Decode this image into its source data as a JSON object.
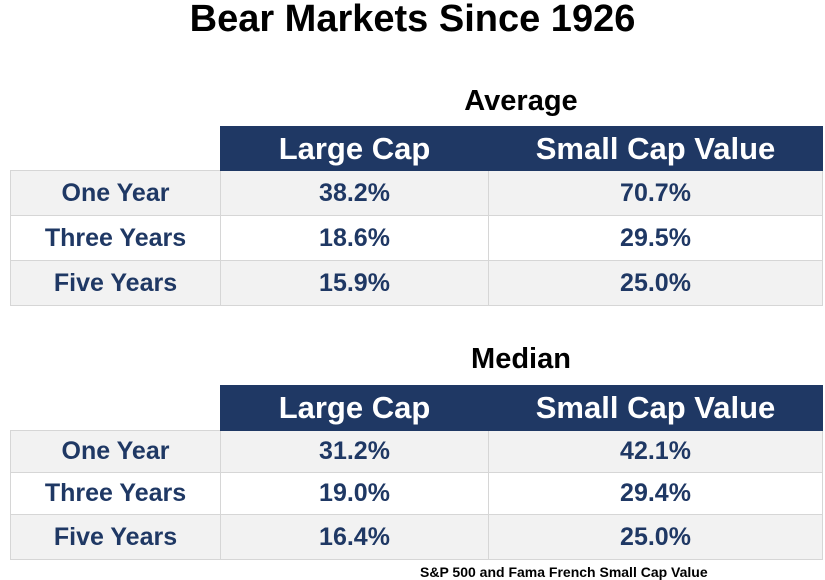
{
  "title": "Bear Markets Since 1926",
  "tables": [
    {
      "heading": "Average",
      "columns": [
        "Large Cap",
        "Small Cap Value"
      ],
      "rows": [
        {
          "label": "One Year",
          "values": [
            "38.2%",
            "70.7%"
          ]
        },
        {
          "label": "Three Years",
          "values": [
            "18.6%",
            "29.5%"
          ]
        },
        {
          "label": "Five Years",
          "values": [
            "15.9%",
            "25.0%"
          ]
        }
      ]
    },
    {
      "heading": "Median",
      "columns": [
        "Large Cap",
        "Small Cap Value"
      ],
      "rows": [
        {
          "label": "One Year",
          "values": [
            "31.2%",
            "42.1%"
          ]
        },
        {
          "label": "Three Years",
          "values": [
            "19.0%",
            "29.4%"
          ]
        },
        {
          "label": "Five Years",
          "values": [
            "16.4%",
            "25.0%"
          ]
        }
      ]
    }
  ],
  "footer": "S&P 500 and Fama French Small Cap Value",
  "colors": {
    "header_bg": "#1f3864",
    "value_text": "#1f3864",
    "row_alt": "#f2f2f2"
  }
}
